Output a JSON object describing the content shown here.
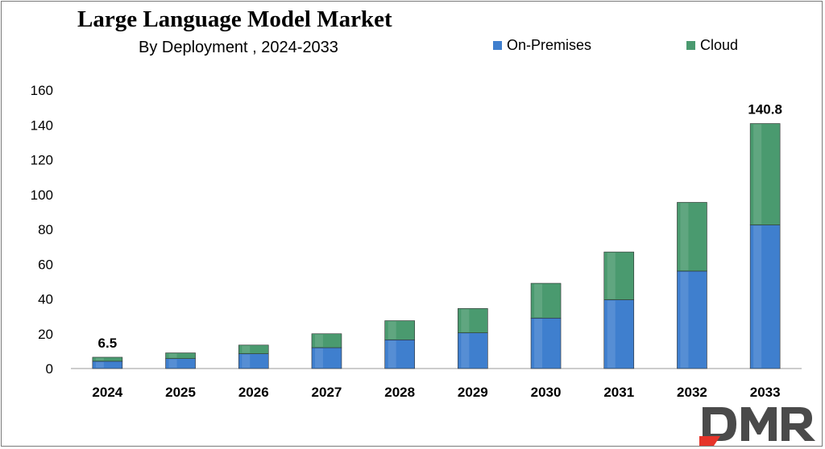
{
  "chart_data": {
    "type": "bar",
    "stacked": true,
    "title": "Large Language Model Market",
    "subtitle": "By Deployment , 2024-2033",
    "categories": [
      "2024",
      "2025",
      "2026",
      "2027",
      "2028",
      "2029",
      "2030",
      "2031",
      "2032",
      "2033"
    ],
    "series": [
      {
        "name": "On-Premises",
        "color": "#3f7fce",
        "values": [
          4.2,
          5.7,
          8.5,
          12.0,
          16.5,
          20.5,
          29.0,
          39.5,
          56.0,
          82.5
        ]
      },
      {
        "name": "Cloud",
        "color": "#4a9a6f",
        "values": [
          2.3,
          3.3,
          5.0,
          8.0,
          11.0,
          14.0,
          20.0,
          27.5,
          39.5,
          58.3
        ]
      }
    ],
    "data_labels": [
      {
        "category": "2024",
        "text": "6.5"
      },
      {
        "category": "2033",
        "text": "140.8"
      }
    ],
    "yticks": [
      "0",
      "20",
      "40",
      "60",
      "80",
      "100",
      "120",
      "140",
      "160"
    ],
    "ylim": [
      0,
      160
    ],
    "xlabel": "",
    "ylabel": "",
    "grid": false,
    "legend_position": "top-right"
  },
  "logo": {
    "text": "DMR",
    "color": "#4a4a4a",
    "accent": "#e63329"
  }
}
